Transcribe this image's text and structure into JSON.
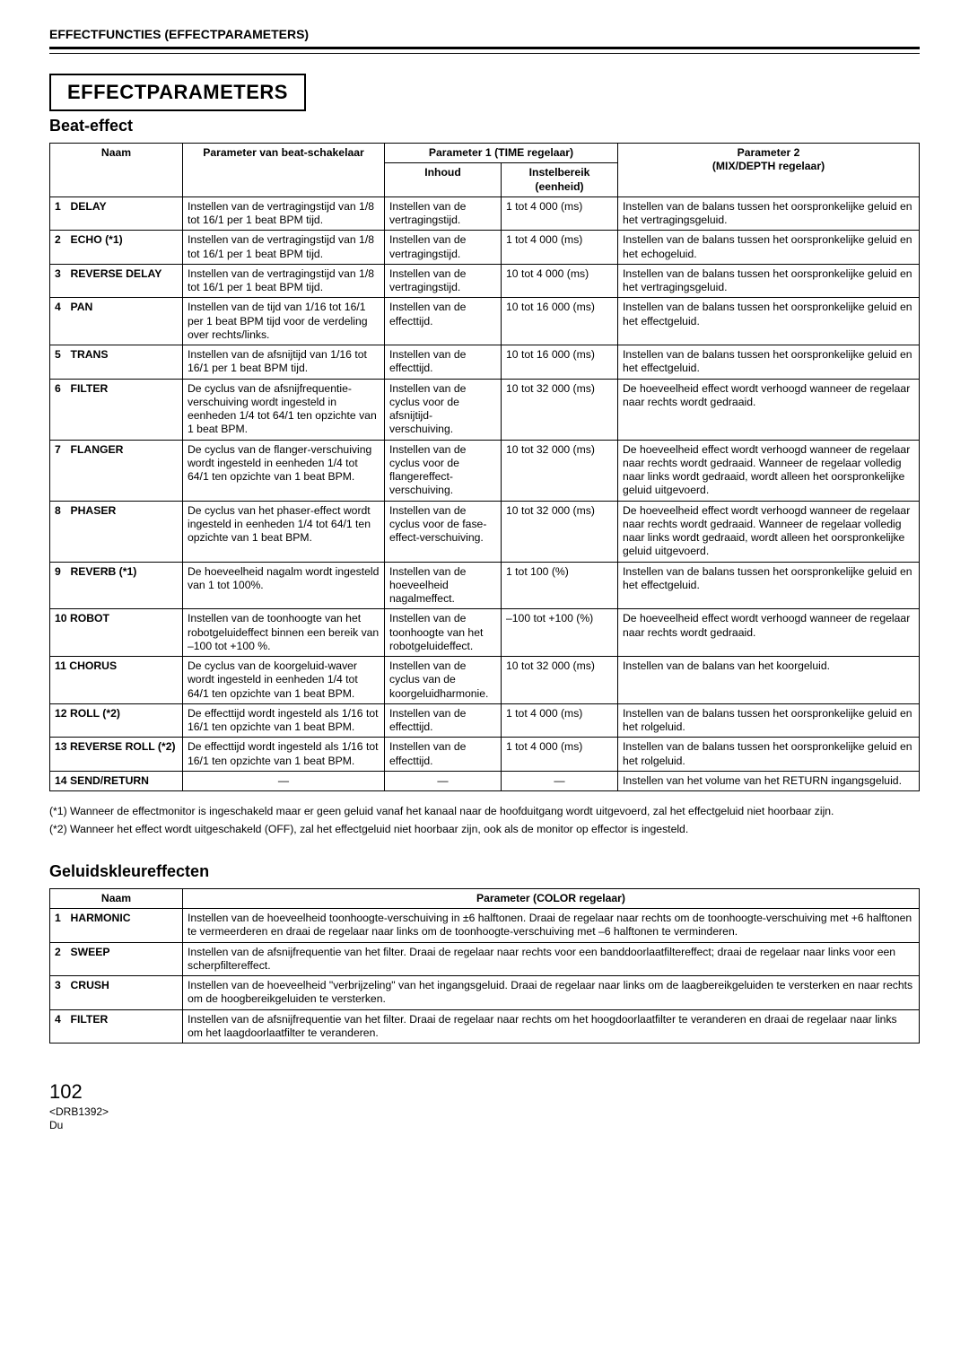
{
  "header": {
    "title": "EFFECTFUNCTIES (EFFECTPARAMETERS)"
  },
  "sectionTitle": "EFFECTPARAMETERS",
  "beatEffect": {
    "title": "Beat-effect",
    "headers": {
      "naam": "Naam",
      "beatParam": "Parameter van beat-schakelaar",
      "param1": "Parameter 1 (TIME regelaar)",
      "inhoud": "Inhoud",
      "range": "Instelbereik (eenheid)",
      "param2": "Parameter 2\n(MIX/DEPTH regelaar)"
    },
    "rows": [
      {
        "n": "1",
        "name": "DELAY",
        "beat": "Instellen van de vertragingstijd van 1/8 tot 16/1 per 1 beat BPM tijd.",
        "inhoud": "Instellen van de vertragingstijd.",
        "range": "1 tot 4 000 (ms)",
        "param2": "Instellen van de balans tussen het oorspronkelijke geluid en het vertragingsgeluid."
      },
      {
        "n": "2",
        "name": "ECHO (*1)",
        "beat": "Instellen van de vertragingstijd van 1/8 tot 16/1 per 1 beat BPM tijd.",
        "inhoud": "Instellen van de vertragingstijd.",
        "range": "1 tot 4 000 (ms)",
        "param2": "Instellen van de balans tussen het oorspronkelijke geluid en het echogeluid."
      },
      {
        "n": "3",
        "name": "REVERSE DELAY",
        "beat": "Instellen van de vertragingstijd van 1/8 tot 16/1 per 1 beat BPM tijd.",
        "inhoud": "Instellen van de vertragingstijd.",
        "range": "10 tot 4 000 (ms)",
        "param2": "Instellen van de balans tussen het oorspronkelijke geluid en het vertragingsgeluid."
      },
      {
        "n": "4",
        "name": "PAN",
        "beat": "Instellen van de tijd van 1/16 tot 16/1 per 1 beat BPM tijd voor de verdeling over rechts/links.",
        "inhoud": "Instellen van de effecttijd.",
        "range": "10 tot 16 000 (ms)",
        "param2": "Instellen van de balans tussen het oorspronkelijke geluid en het effectgeluid."
      },
      {
        "n": "5",
        "name": "TRANS",
        "beat": "Instellen van de afsnijtijd van 1/16 tot 16/1 per 1 beat BPM tijd.",
        "inhoud": "Instellen van de effecttijd.",
        "range": "10 tot 16 000 (ms)",
        "param2": "Instellen van de balans tussen het oorspronkelijke geluid en het effectgeluid."
      },
      {
        "n": "6",
        "name": "FILTER",
        "beat": "De cyclus van de afsnijfrequentie-verschuiving wordt ingesteld in eenheden 1/4 tot 64/1 ten opzichte van 1 beat BPM.",
        "inhoud": "Instellen van de cyclus voor de afsnijtijd-verschuiving.",
        "range": "10 tot 32 000 (ms)",
        "param2": "De hoeveelheid effect wordt verhoogd wanneer de regelaar naar rechts wordt gedraaid."
      },
      {
        "n": "7",
        "name": "FLANGER",
        "beat": "De cyclus van de flanger-verschuiving wordt ingesteld in eenheden 1/4 tot 64/1 ten opzichte van 1 beat BPM.",
        "inhoud": "Instellen van de cyclus voor de flangereffect-verschuiving.",
        "range": "10 tot 32 000 (ms)",
        "param2": "De hoeveelheid effect wordt verhoogd wanneer de regelaar naar rechts wordt gedraaid. Wanneer de regelaar volledig naar links wordt gedraaid, wordt alleen het oorspronkelijke geluid uitgevoerd."
      },
      {
        "n": "8",
        "name": "PHASER",
        "beat": "De cyclus van het phaser-effect wordt ingesteld in eenheden 1/4 tot 64/1 ten opzichte van 1 beat BPM.",
        "inhoud": "Instellen van de cyclus voor de fase-effect-verschuiving.",
        "range": "10 tot 32 000 (ms)",
        "param2": "De hoeveelheid effect wordt verhoogd wanneer de regelaar naar rechts wordt gedraaid. Wanneer de regelaar volledig naar links wordt gedraaid, wordt alleen het oorspronkelijke geluid uitgevoerd."
      },
      {
        "n": "9",
        "name": "REVERB (*1)",
        "beat": "De hoeveelheid nagalm wordt ingesteld van 1 tot 100%.",
        "inhoud": "Instellen van de hoeveelheid nagalmeffect.",
        "range": "1 tot 100 (%)",
        "param2": "Instellen van de balans tussen het oorspronkelijke geluid en het effectgeluid."
      },
      {
        "n": "10",
        "name": "ROBOT",
        "beat": "Instellen van de toonhoogte van het robotgeluideffect binnen een bereik van –100 tot +100 %.",
        "inhoud": "Instellen van de toonhoogte van het robotgeluideffect.",
        "range": "–100 tot +100 (%)",
        "param2": "De hoeveelheid effect wordt verhoogd wanneer de regelaar naar rechts wordt gedraaid."
      },
      {
        "n": "11",
        "name": "CHORUS",
        "beat": "De cyclus van de koorgeluid-waver wordt ingesteld in eenheden 1/4 tot 64/1 ten opzichte van 1 beat BPM.",
        "inhoud": "Instellen van de cyclus van de koorgeluidharmonie.",
        "range": "10 tot 32 000 (ms)",
        "param2": "Instellen van de balans van het koorgeluid."
      },
      {
        "n": "12",
        "name": "ROLL (*2)",
        "beat": "De effecttijd wordt ingesteld als 1/16 tot 16/1 ten opzichte van 1 beat BPM.",
        "inhoud": "Instellen van de effecttijd.",
        "range": "1 tot 4 000 (ms)",
        "param2": "Instellen van de balans tussen het oorspronkelijke geluid en het rolgeluid."
      },
      {
        "n": "13",
        "name": "REVERSE ROLL (*2)",
        "beat": "De effecttijd wordt ingesteld als 1/16 tot 16/1 ten opzichte van 1 beat BPM.",
        "inhoud": "Instellen van de effecttijd.",
        "range": "1 tot 4 000 (ms)",
        "param2": "Instellen van de balans tussen het oorspronkelijke geluid en het rolgeluid."
      },
      {
        "n": "14",
        "name": "SEND/RETURN",
        "beat": "—",
        "inhoud": "—",
        "range": "—",
        "param2": "Instellen van het volume van het RETURN ingangsgeluid."
      }
    ]
  },
  "footnotes": {
    "f1": "(*1) Wanneer de effectmonitor is ingeschakeld maar er geen geluid vanaf het kanaal naar de hoofduitgang wordt uitgevoerd, zal het effectgeluid niet hoorbaar zijn.",
    "f2": "(*2) Wanneer het effect wordt uitgeschakeld (OFF), zal het effectgeluid niet hoorbaar zijn, ook als de monitor op effector is ingesteld."
  },
  "colorEffect": {
    "title": "Geluidskleureffecten",
    "headers": {
      "naam": "Naam",
      "param": "Parameter (COLOR regelaar)"
    },
    "rows": [
      {
        "n": "1",
        "name": "HARMONIC",
        "param": "Instellen van de hoeveelheid toonhoogte-verschuiving in ±6 halftonen. Draai de regelaar naar rechts om de toonhoogte-verschuiving met +6 halftonen te vermeerderen en draai de regelaar naar links om de toonhoogte-verschuiving met –6 halftonen te verminderen."
      },
      {
        "n": "2",
        "name": "SWEEP",
        "param": "Instellen van de afsnijfrequentie van het filter. Draai de regelaar naar rechts voor een banddoorlaatfiltereffect; draai de regelaar naar links voor een scherpfiltereffect."
      },
      {
        "n": "3",
        "name": "CRUSH",
        "param": "Instellen van de hoeveelheid \"verbrijzeling\" van het ingangsgeluid. Draai de regelaar naar links om de laagbereikgeluiden te versterken en naar rechts om de hoogbereikgeluiden te versterken."
      },
      {
        "n": "4",
        "name": "FILTER",
        "param": "Instellen van de afsnijfrequentie van het filter. Draai de regelaar naar rechts om het hoogdoorlaatfilter te veranderen en draai de regelaar naar links om het laagdoorlaatfilter te veranderen."
      }
    ]
  },
  "footer": {
    "page": "102",
    "code": "<DRB1392>",
    "lang": "Du"
  }
}
